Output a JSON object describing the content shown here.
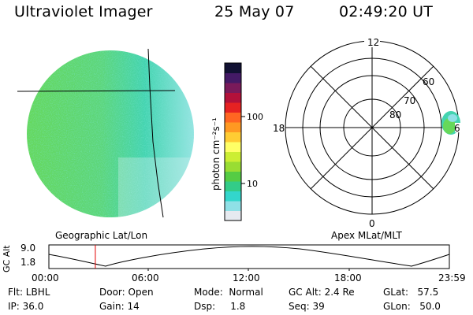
{
  "header": {
    "title": "Ultraviolet Imager",
    "date": "25 May 07",
    "time": "02:49:20 UT"
  },
  "colorbar": {
    "label": "photon cm⁻²s⁻¹",
    "ticks": [
      "100",
      "10"
    ],
    "scale": "log",
    "colors": [
      "#e6eaf0",
      "#8fe0e6",
      "#33d6cc",
      "#33cc88",
      "#55cc44",
      "#99dd33",
      "#ccee33",
      "#ffff66",
      "#ffcc33",
      "#ff9922",
      "#ff6622",
      "#e62222",
      "#b3113a",
      "#7a1a5a",
      "#441a66",
      "#111133"
    ]
  },
  "left_panel": {
    "caption": "Geographic Lat/Lon"
  },
  "right_panel": {
    "caption": "Apex MLat/MLT",
    "mlt_labels": [
      "12",
      "18",
      "6",
      "0"
    ],
    "mlat_labels": [
      "60",
      "70",
      "80"
    ]
  },
  "timeline": {
    "axis_label": "GC Alt",
    "y_ticks": [
      "9.0",
      "1.8"
    ],
    "x_ticks": [
      "00:00",
      "06:00",
      "12:00",
      "18:00",
      "23:59"
    ],
    "current_marker_fraction": 0.116
  },
  "status": {
    "flt": "Flt: LBHL",
    "ip": "IP: 36.0",
    "door": "Door: Open",
    "gain": "Gain: 14",
    "mode": "Mode:  Normal",
    "dsp": "Dsp:     1.8",
    "gc_alt": "GC Alt: 2.4 Re",
    "seq": "Seq: 39",
    "glat": "GLat:   57.5",
    "glon": "GLon:   50.0"
  }
}
